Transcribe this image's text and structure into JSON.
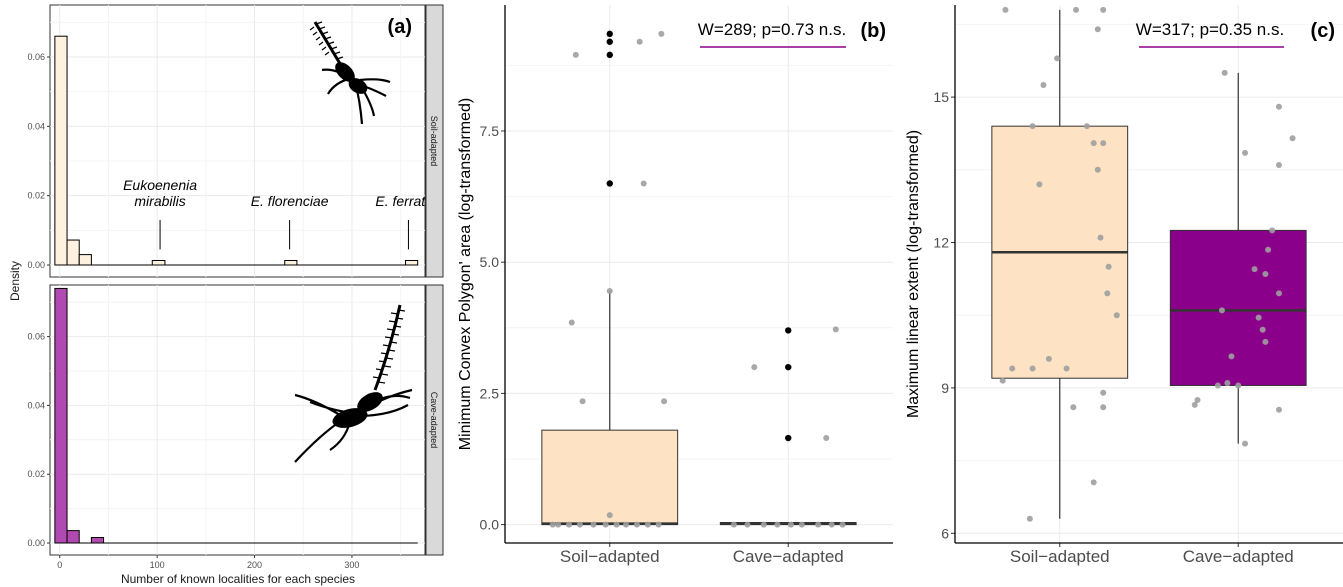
{
  "chart_data": [
    {
      "type": "bar",
      "panel_label": "(a)",
      "subtype": "faceted histogram",
      "xlabel": "Number of known localities for each species",
      "ylabel": "Density",
      "xlim": [
        -10,
        375
      ],
      "xticks": [
        "0",
        "100",
        "200",
        "300"
      ],
      "facets": [
        {
          "name": "Soil-adapted",
          "ylim": [
            0,
            0.075
          ],
          "yticks": [
            "0.00",
            "0.02",
            "0.04",
            "0.06"
          ],
          "bins": [
            [
              -5,
              7.5
            ],
            [
              7.5,
              20
            ],
            [
              20,
              32.5
            ],
            [
              95,
              108
            ],
            [
              231,
              243.5
            ],
            [
              355,
              367.5
            ]
          ],
          "values": [
            0.066,
            0.0072,
            0.003,
            0.0013,
            0.0013,
            0.0013
          ],
          "annotations": [
            {
              "lines": [
                "Eukoenenia",
                "mirabilis"
              ],
              "x": 103
            },
            {
              "lines": [
                "E. florenciae"
              ],
              "x": 236
            },
            {
              "lines": [
                "E. ferratilis"
              ],
              "x": 358
            }
          ]
        },
        {
          "name": "Cave-adapted",
          "ylim": [
            0,
            0.075
          ],
          "yticks": [
            "0.00",
            "0.02",
            "0.04",
            "0.06"
          ],
          "bins": [
            [
              -5,
              7.5
            ],
            [
              7.5,
              20
            ],
            [
              32.5,
              45
            ]
          ],
          "values": [
            0.074,
            0.0036,
            0.0016
          ]
        }
      ],
      "colors": {
        "soil": "#FFF1DF",
        "cave": "#B04AB0",
        "strip": "#D9D9D9"
      }
    },
    {
      "type": "box",
      "panel_label": "(b)",
      "ylabel": "Minimum Convex Polygon' area (log-transformed)",
      "categories": [
        "Soil−adapted",
        "Cave−adapted"
      ],
      "ylim": [
        -0.35,
        9.9
      ],
      "yticks": [
        "0.0",
        "2.5",
        "5.0",
        "7.5"
      ],
      "annotation": "W=289; p=0.73 n.s.",
      "series": [
        {
          "name": "Soil−adapted",
          "box": {
            "q1": 0.0,
            "median": 0.02,
            "q3": 1.8,
            "whisker_low": 0.0,
            "whisker_high": 4.45
          },
          "outliers": [
            6.5,
            8.95,
            9.2,
            9.35
          ]
        },
        {
          "name": "Cave−adapted",
          "box": {
            "q1": 0.0,
            "median": 0.02,
            "q3": 0.04,
            "whisker_low": 0.0,
            "whisker_high": 0.04
          },
          "outliers": [
            1.65,
            3.0,
            3.7
          ]
        }
      ],
      "jitter": [
        {
          "cat": 0,
          "points": [
            [
              0.08,
              0
            ],
            [
              0.12,
              0
            ],
            [
              0.2,
              0
            ],
            [
              0.28,
              0
            ],
            [
              0.38,
              0
            ],
            [
              0.47,
              0
            ],
            [
              0.55,
              0
            ],
            [
              0.62,
              0
            ],
            [
              0.7,
              0
            ],
            [
              0.78,
              0
            ],
            [
              0.86,
              0
            ],
            [
              0.5,
              0.18
            ],
            [
              0.3,
              2.35
            ],
            [
              0.9,
              2.35
            ],
            [
              0.22,
              3.85
            ],
            [
              0.5,
              4.45
            ],
            [
              0.25,
              8.95
            ],
            [
              0.72,
              9.2
            ],
            [
              0.88,
              9.35
            ],
            [
              0.75,
              6.5
            ]
          ]
        },
        {
          "cat": 1,
          "points": [
            [
              0.1,
              0
            ],
            [
              0.2,
              0
            ],
            [
              0.32,
              0
            ],
            [
              0.42,
              0
            ],
            [
              0.52,
              0
            ],
            [
              0.6,
              0
            ],
            [
              0.72,
              0
            ],
            [
              0.82,
              0
            ],
            [
              0.9,
              0
            ],
            [
              0.25,
              3.0
            ],
            [
              0.85,
              3.72
            ],
            [
              0.78,
              1.65
            ]
          ]
        }
      ],
      "colors": {
        "soil": "#FDE3C3",
        "cave": "#FDE3C3",
        "sig_line": "#8B008B"
      }
    },
    {
      "type": "box",
      "panel_label": "(c)",
      "ylabel": "Maximum linear extent (log-transformed)",
      "categories": [
        "Soil−adapted",
        "Cave−adapted"
      ],
      "ylim": [
        5.8,
        16.9
      ],
      "yticks": [
        "6",
        "9",
        "12",
        "15"
      ],
      "annotation": "W=317; p=0.35 n.s.",
      "series": [
        {
          "name": "Soil−adapted",
          "box": {
            "q1": 9.2,
            "median": 11.8,
            "q3": 14.4,
            "whisker_low": 6.3,
            "whisker_high": 16.8
          },
          "outliers": []
        },
        {
          "name": "Cave−adapted",
          "box": {
            "q1": 9.05,
            "median": 10.6,
            "q3": 12.25,
            "whisker_low": 7.85,
            "whisker_high": 15.5
          },
          "outliers": []
        }
      ],
      "jitter": [
        {
          "cat": 0,
          "points": [
            [
              0.1,
              16.8
            ],
            [
              0.62,
              16.8
            ],
            [
              0.82,
              16.8
            ],
            [
              0.78,
              16.4
            ],
            [
              0.48,
              15.8
            ],
            [
              0.38,
              15.25
            ],
            [
              0.3,
              14.4
            ],
            [
              0.7,
              14.4
            ],
            [
              0.75,
              14.05
            ],
            [
              0.82,
              14.05
            ],
            [
              0.35,
              13.2
            ],
            [
              0.78,
              13.5
            ],
            [
              0.8,
              12.1
            ],
            [
              0.86,
              11.5
            ],
            [
              0.85,
              10.95
            ],
            [
              0.92,
              10.5
            ],
            [
              0.42,
              9.6
            ],
            [
              0.15,
              9.4
            ],
            [
              0.3,
              9.4
            ],
            [
              0.55,
              9.4
            ],
            [
              0.08,
              9.15
            ],
            [
              0.82,
              8.9
            ],
            [
              0.6,
              8.6
            ],
            [
              0.82,
              8.6
            ],
            [
              0.75,
              7.05
            ],
            [
              0.28,
              6.3
            ]
          ]
        },
        {
          "cat": 1,
          "points": [
            [
              0.4,
              15.5
            ],
            [
              0.8,
              14.8
            ],
            [
              0.9,
              14.15
            ],
            [
              0.55,
              13.85
            ],
            [
              0.8,
              13.6
            ],
            [
              0.75,
              12.25
            ],
            [
              0.72,
              11.85
            ],
            [
              0.62,
              11.45
            ],
            [
              0.7,
              11.35
            ],
            [
              0.8,
              10.95
            ],
            [
              0.38,
              10.6
            ],
            [
              0.65,
              10.45
            ],
            [
              0.68,
              10.2
            ],
            [
              0.7,
              9.95
            ],
            [
              0.45,
              9.65
            ],
            [
              0.42,
              9.1
            ],
            [
              0.35,
              9.05
            ],
            [
              0.5,
              9.05
            ],
            [
              0.2,
              8.75
            ],
            [
              0.18,
              8.65
            ],
            [
              0.8,
              8.55
            ],
            [
              0.55,
              7.85
            ]
          ]
        }
      ],
      "colors": {
        "soil": "#FDE3C3",
        "cave": "#8B008B",
        "sig_line": "#8B008B"
      }
    }
  ]
}
